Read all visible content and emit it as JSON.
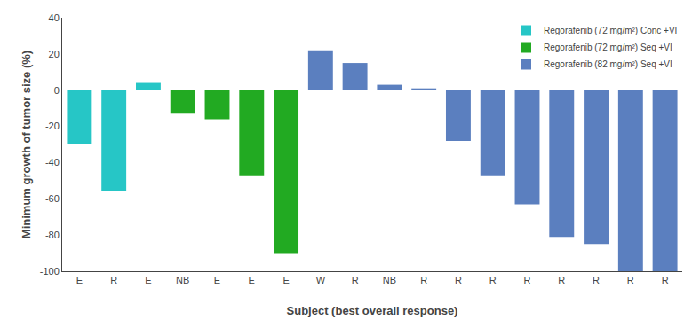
{
  "chart_data": {
    "type": "bar",
    "xlabel": "Subject (best overall response)",
    "ylabel": "Minimum growth of tumor size (%)",
    "categories": [
      "E",
      "R",
      "E",
      "NB",
      "E",
      "E",
      "E",
      "W",
      "R",
      "NB",
      "R",
      "R",
      "R",
      "R",
      "R",
      "R",
      "R",
      "R"
    ],
    "series": [
      {
        "name": "Regorafenib (72 mg/m²) Conc +VI",
        "color": "#26C6C6",
        "values": [
          -30,
          -56,
          4,
          null,
          null,
          null,
          null,
          null,
          null,
          null,
          null,
          null,
          null,
          null,
          null,
          null,
          null,
          null
        ]
      },
      {
        "name": "Regorafenib (72 mg/m²) Seq +VI",
        "color": "#22AA22",
        "values": [
          null,
          null,
          null,
          -13,
          -16,
          -47,
          -90,
          null,
          null,
          null,
          null,
          null,
          null,
          null,
          null,
          null,
          null,
          null
        ]
      },
      {
        "name": "Regorafenib (82 mg/m²) Seq +VI",
        "color": "#5B7FBF",
        "values": [
          null,
          null,
          null,
          null,
          null,
          null,
          null,
          22,
          15,
          3,
          1,
          -28,
          -47,
          -63,
          -81,
          -85,
          -100,
          -100
        ]
      }
    ],
    "ylim": [
      -100,
      40
    ],
    "yticks": [
      -100,
      -80,
      -60,
      -40,
      -20,
      0,
      20,
      40
    ],
    "grid": false,
    "legend": "upper right"
  }
}
